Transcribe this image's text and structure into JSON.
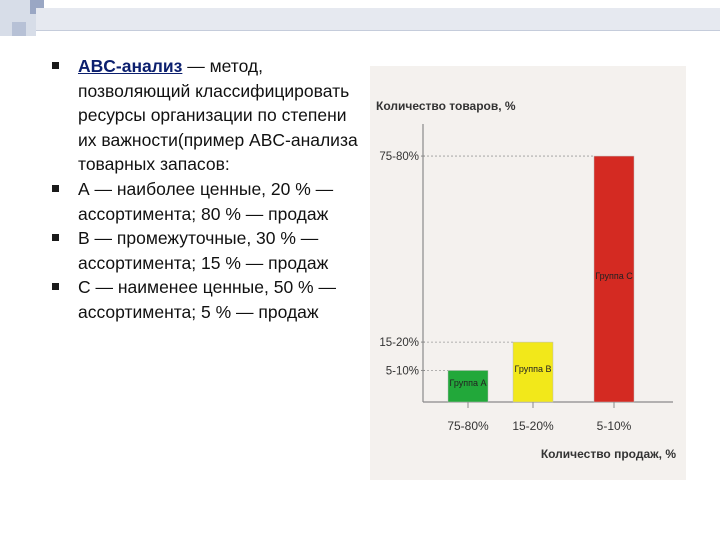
{
  "bullets": [
    {
      "term": "ABC-анализ",
      "text": " — метод, позволяющий классифицировать ресурсы организации по степени их важности(пример ABC-анализа товарных запасов:"
    },
    {
      "term": "",
      "text": "А — наиболее ценные, 20 % — ассортимента; 80 % — продаж"
    },
    {
      "term": "",
      "text": "В — промежуточные, 30 % — ассортимента; 15 % — продаж"
    },
    {
      "term": "",
      "text": "С — наименее ценные, 50 % — ассортимента; 5 % — продаж"
    }
  ],
  "colors": {
    "green": "#22a83a",
    "yellow": "#f2e81a",
    "red": "#d42a22",
    "panel": "#f4f1ee",
    "axis": "#8a8a8a"
  },
  "chart_data": {
    "type": "bar",
    "ylabel": "Количество товаров, %",
    "xlabel": "Количество продаж, %",
    "categories": [
      "75-80%",
      "15-20%",
      "5-10%"
    ],
    "y_ticks": [
      "75-80%",
      "15-20%",
      "5-10%"
    ],
    "ylim": [
      0,
      85
    ],
    "series": [
      {
        "name": "Группа А",
        "category": "75-80%",
        "value": 10,
        "color": "#22a83a"
      },
      {
        "name": "Группа В",
        "category": "15-20%",
        "value": 19,
        "color": "#f2e81a"
      },
      {
        "name": "Группа С",
        "category": "5-10%",
        "value": 78,
        "color": "#d42a22"
      }
    ]
  }
}
